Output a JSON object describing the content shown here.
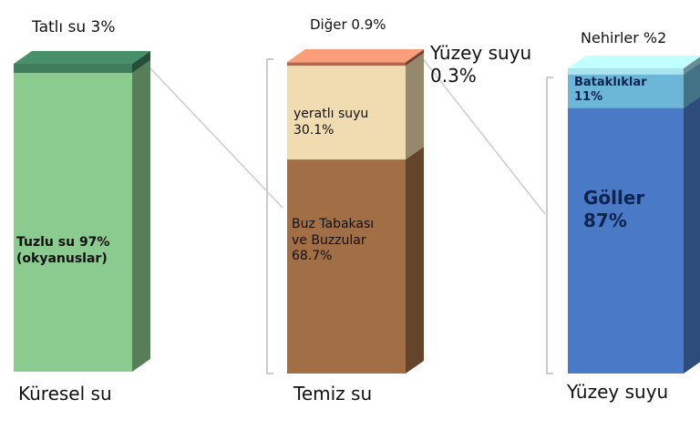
{
  "chart_data": [
    {
      "type": "stacked_bar",
      "title": "Küresel su",
      "ylim": [
        0,
        100
      ],
      "segments": [
        {
          "label": "Tuzlu su 97%\n(okyanuslar)",
          "value": 97,
          "color": "#8ccb90"
        },
        {
          "label": "Tatlı su 3%",
          "value": 3,
          "color": "#3f7d5c"
        }
      ]
    },
    {
      "type": "stacked_bar",
      "title": "Temiz su",
      "ylim": [
        0,
        100
      ],
      "segments": [
        {
          "label": "Buz Tabakası\nve Buzzular\n68.7%",
          "value": 68.7,
          "color": "#a16e45"
        },
        {
          "label": "yeratlı suyu\n30.1%",
          "value": 30.1,
          "color": "#f0dcb0"
        },
        {
          "label": "Diğer 0.9%",
          "value": 0.9,
          "color": "#b8614a"
        },
        {
          "label": "Yüzey suyu\n0.3%",
          "value": 0.3,
          "color": "#d98a6a"
        }
      ]
    },
    {
      "type": "stacked_bar",
      "title": "Yüzey suyu",
      "ylim": [
        0,
        100
      ],
      "segments": [
        {
          "label": "Göller\n87%",
          "value": 87,
          "color": "#4a7ac6"
        },
        {
          "label": "Bataklıklar\n11%",
          "value": 11,
          "color": "#6cb6d8"
        },
        {
          "label": "Nehirler %2",
          "value": 2,
          "color": "#a9e4ef"
        }
      ]
    }
  ]
}
